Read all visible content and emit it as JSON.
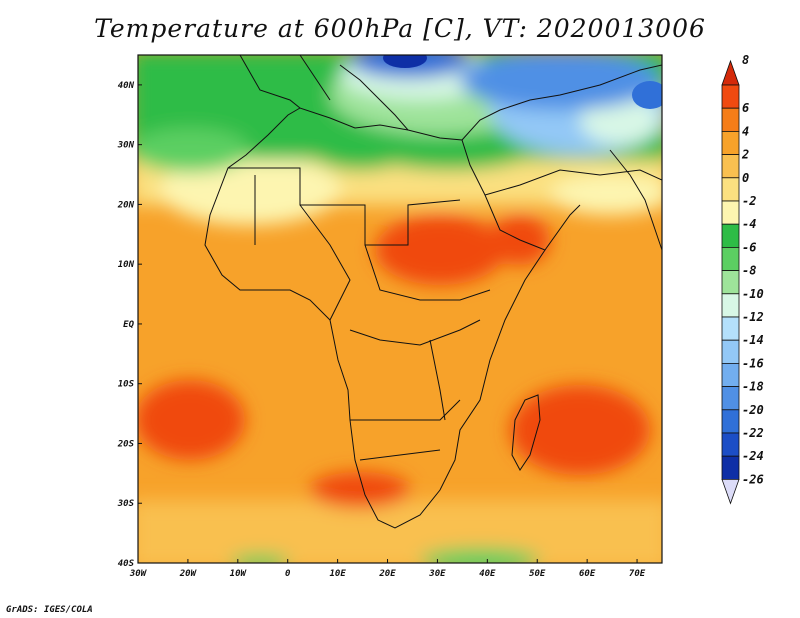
{
  "title": "Temperature at 600hPa [C], VT: 2020013006",
  "footer": "GrADS: IGES/COLA",
  "map": {
    "lon_range": [
      -30,
      75
    ],
    "lat_range": [
      -40,
      45
    ],
    "lon_ticks": [
      "30W",
      "20W",
      "10W",
      "0",
      "10E",
      "20E",
      "30E",
      "40E",
      "50E",
      "60E",
      "70E"
    ],
    "lat_ticks": [
      "40S",
      "30S",
      "20S",
      "10S",
      "EQ",
      "10N",
      "20N",
      "30N",
      "40N"
    ]
  },
  "colorbar": {
    "labels": [
      "8",
      "6",
      "4",
      "2",
      "0",
      "-2",
      "-4",
      "-6",
      "-8",
      "-10",
      "-12",
      "-14",
      "-16",
      "-18",
      "-20",
      "-22",
      "-24",
      "-26"
    ],
    "colors": [
      "#d42a0a",
      "#f04a10",
      "#f57d18",
      "#f7a22a",
      "#f9c050",
      "#fbe080",
      "#fdf5b0",
      "#2ebc46",
      "#5ccf62",
      "#9ee39a",
      "#d8f7e6",
      "#b4e0fb",
      "#93c8f6",
      "#72aeef",
      "#5090e5",
      "#3070d8",
      "#1c4ec6",
      "#0e2fa6",
      "#0a1470"
    ]
  }
}
